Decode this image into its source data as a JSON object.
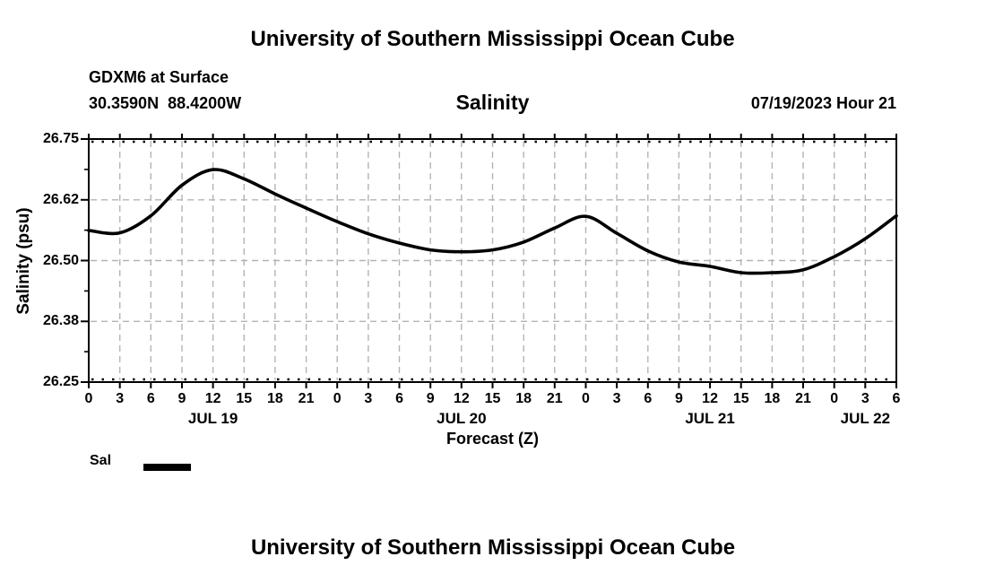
{
  "page": {
    "title": "University of Southern Mississippi Ocean Cube",
    "footer_title": "University of Southern Mississippi Ocean Cube"
  },
  "header": {
    "station": "GDXM6 at Surface",
    "coordinates": "30.3590N  88.4200W",
    "plot_title": "Salinity",
    "run_time": "07/19/2023 Hour 21"
  },
  "legend": {
    "label": "Sal",
    "swatch_color": "#000000"
  },
  "chart_data": {
    "type": "line",
    "title": "Salinity",
    "xlabel": "Forecast (Z)",
    "ylabel": "Salinity (psu)",
    "grid": true,
    "grid_color": "#b4b4b4",
    "line_color": "#000000",
    "xlim": [
      0,
      78
    ],
    "ylim": [
      26.25,
      26.75
    ],
    "x": [
      0,
      3,
      6,
      9,
      12,
      15,
      18,
      21,
      24,
      27,
      30,
      33,
      36,
      39,
      42,
      45,
      48,
      51,
      54,
      57,
      60,
      63,
      66,
      69,
      72,
      75,
      78
    ],
    "series": [
      {
        "name": "Sal",
        "values": [
          26.562,
          26.557,
          26.592,
          26.655,
          26.687,
          26.668,
          26.637,
          26.608,
          26.58,
          26.555,
          26.536,
          26.522,
          26.518,
          26.522,
          26.538,
          26.567,
          26.591,
          26.556,
          26.52,
          26.497,
          26.488,
          26.475,
          26.475,
          26.481,
          26.508,
          26.545,
          26.592
        ]
      }
    ],
    "xtick_hours": [
      0,
      3,
      6,
      9,
      12,
      15,
      18,
      21,
      24,
      27,
      30,
      33,
      36,
      39,
      42,
      45,
      48,
      51,
      54,
      57,
      60,
      63,
      66,
      69,
      72,
      75,
      78
    ],
    "xtick_labels": [
      "0",
      "3",
      "6",
      "9",
      "12",
      "15",
      "18",
      "21",
      "0",
      "3",
      "6",
      "9",
      "12",
      "15",
      "18",
      "21",
      "0",
      "3",
      "6",
      "9",
      "12",
      "15",
      "18",
      "21",
      "0",
      "3",
      "6"
    ],
    "day_labels": [
      {
        "label": "JUL 19",
        "hour": 12
      },
      {
        "label": "JUL 20",
        "hour": 36
      },
      {
        "label": "JUL 21",
        "hour": 60
      },
      {
        "label": "JUL 22",
        "hour": 75
      }
    ],
    "ytick_values": [
      26.75,
      26.625,
      26.5,
      26.375,
      26.25
    ],
    "ytick_labels": [
      "26.75",
      "26.62",
      "26.50",
      "26.38",
      "26.25"
    ]
  }
}
